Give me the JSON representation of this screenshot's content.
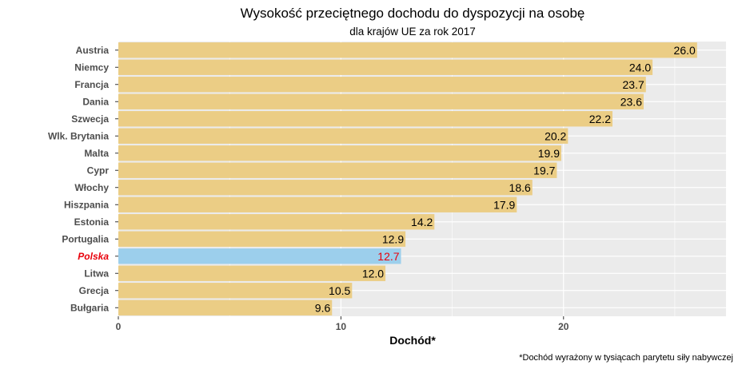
{
  "chart_data": {
    "type": "bar",
    "orientation": "horizontal",
    "title": "Wysokość przeciętnego dochodu do dyspozycji na osobę",
    "subtitle": "dla krajów UE za rok 2017",
    "xlabel": "Dochód*",
    "ylabel": "",
    "caption": "*Dochód wyrażony w tysiącach parytetu siły nabywczej",
    "xlim": [
      0,
      27.3
    ],
    "xticks": [
      0,
      10,
      20
    ],
    "grid": true,
    "legend": "none",
    "highlight": "Polska",
    "colors": {
      "bar": "#ebcd85",
      "highlight_bar": "#9ccfec",
      "highlight_text": "#e8000b",
      "panel": "#ebebeb",
      "grid": "#ffffff"
    },
    "categories": [
      "Austria",
      "Niemcy",
      "Francja",
      "Dania",
      "Szwecja",
      "Wlk. Brytania",
      "Malta",
      "Cypr",
      "Włochy",
      "Hiszpania",
      "Estonia",
      "Portugalia",
      "Polska",
      "Litwa",
      "Grecja",
      "Bułgaria"
    ],
    "values": [
      26.0,
      24.0,
      23.7,
      23.6,
      22.2,
      20.2,
      19.9,
      19.7,
      18.6,
      17.9,
      14.2,
      12.9,
      12.7,
      12.0,
      10.5,
      9.6
    ],
    "value_labels": [
      "26.0",
      "24.0",
      "23.7",
      "23.6",
      "22.2",
      "20.2",
      "19.9",
      "19.7",
      "18.6",
      "17.9",
      "14.2",
      "12.9",
      "12.7",
      "12.0",
      "10.5",
      "9.6"
    ]
  }
}
